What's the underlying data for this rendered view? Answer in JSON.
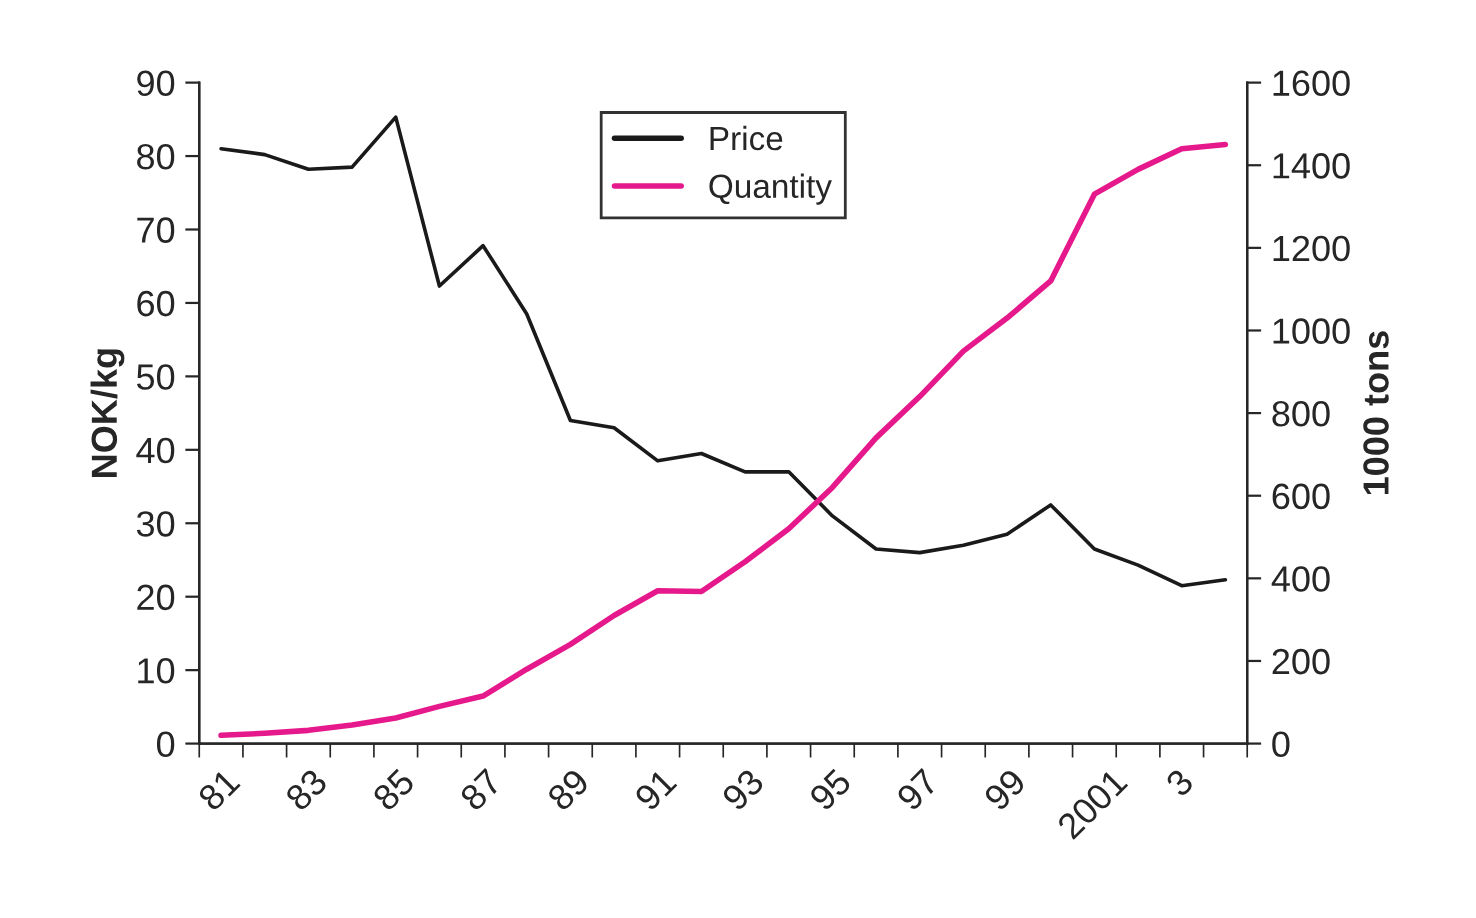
{
  "chart_data": {
    "type": "line",
    "ylabel": "NOK/kg",
    "y2label": "1000 tons",
    "categories": [
      "81",
      null,
      "83",
      null,
      "85",
      null,
      "87",
      null,
      "89",
      null,
      "91",
      null,
      "93",
      null,
      "95",
      null,
      "97",
      null,
      "99",
      null,
      "2001",
      null,
      "3",
      null
    ],
    "series": [
      {
        "name": "Price",
        "color": "#1a1a1a",
        "values": [
          81,
          80.2,
          78.2,
          78.5,
          85.3,
          62.3,
          67.8,
          58.5,
          44,
          43,
          38.5,
          39.5,
          37,
          37,
          31,
          26.5,
          26,
          27,
          28.5,
          32.5,
          26.5,
          24.3,
          21.5,
          22.3
        ]
      },
      {
        "name": "Quantity",
        "color": "#e6198c",
        "axis": "y2",
        "values": [
          20,
          25,
          32,
          45,
          62,
          90,
          115,
          180,
          240,
          310,
          370,
          368,
          440,
          520,
          620,
          740,
          840,
          950,
          1030,
          1120,
          1330,
          1390,
          1440,
          1450
        ]
      }
    ],
    "ylim": [
      0,
      90
    ],
    "yticks": [
      0,
      10,
      20,
      30,
      40,
      50,
      60,
      70,
      80,
      90
    ],
    "y2lim": [
      0,
      1600
    ],
    "y2ticks": [
      0,
      200,
      400,
      600,
      800,
      1000,
      1200,
      1400,
      1600
    ],
    "grid": false,
    "legend": "top center",
    "marker": "none",
    "line_style": "solid"
  }
}
